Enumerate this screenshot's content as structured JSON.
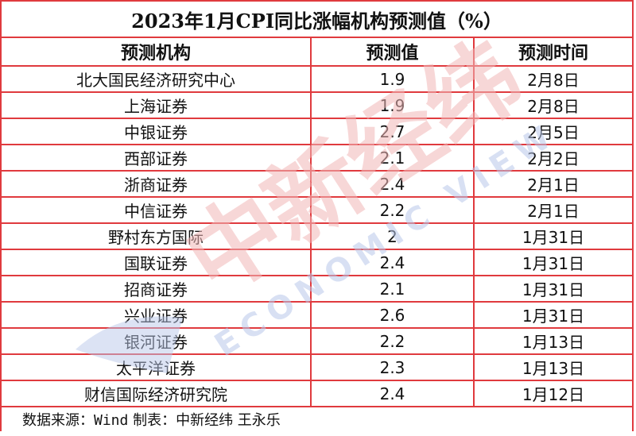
{
  "title": "2023年1月CPI同比涨幅机构预测值（%）",
  "headers": [
    "预测机构",
    "预测值",
    "预测时间"
  ],
  "rows": [
    [
      "北大国民经济研究中心",
      "1.9",
      "2月8日"
    ],
    [
      "上海证券",
      "1.9",
      "2月8日"
    ],
    [
      "中银证券",
      "2.7",
      "2月5日"
    ],
    [
      "西部证券",
      "2.1",
      "2月2日"
    ],
    [
      "浙商证券",
      "2.4",
      "2月1日"
    ],
    [
      "中信证券",
      "2.2",
      "2月1日"
    ],
    [
      "野村东方国际",
      "2",
      "1月31日"
    ],
    [
      "国联证券",
      "2.4",
      "1月31日"
    ],
    [
      "招商证券",
      "2.1",
      "1月31日"
    ],
    [
      "兴业证券",
      "2.6",
      "1月31日"
    ],
    [
      "银河证券",
      "2.2",
      "1月13日"
    ],
    [
      "太平洋证券",
      "2.3",
      "1月13日"
    ],
    [
      "财信国际经济研究院",
      "2.4",
      "1月12日"
    ]
  ],
  "footer": {
    "label": "数据来源：",
    "source": "Wind",
    "rest": " 制表：中新经纬 王永乐"
  },
  "watermark": {
    "main": "中新经纬",
    "sub": "ECONOMIC VIEW"
  },
  "colors": {
    "border": "#e03a3e",
    "watermark_red": "#f2b8b8",
    "watermark_blue": "#b9c8ea"
  }
}
